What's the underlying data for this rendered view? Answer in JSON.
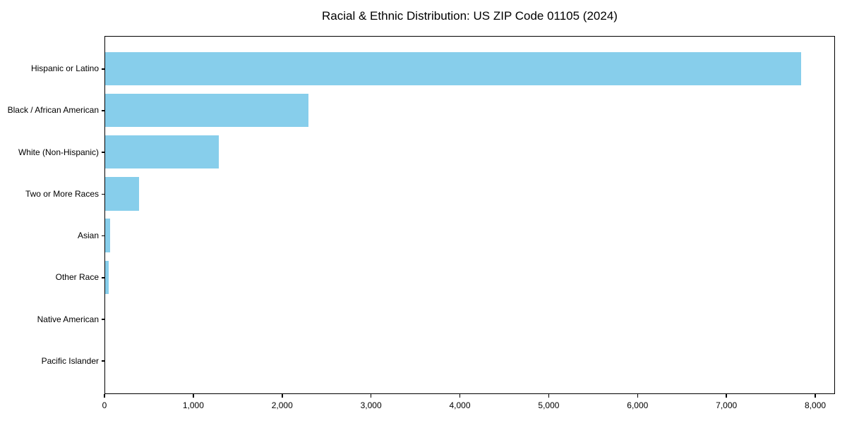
{
  "chart_data": {
    "type": "bar",
    "orientation": "horizontal",
    "title": "Racial & Ethnic Distribution: US ZIP Code 01105 (2024)",
    "categories": [
      "Hispanic or Latino",
      "Black / African American",
      "White (Non-Hispanic)",
      "Two or More Races",
      "Asian",
      "Other Race",
      "Native American",
      "Pacific Islander"
    ],
    "values": [
      7830,
      2290,
      1280,
      380,
      55,
      40,
      0,
      0
    ],
    "xlabel": "",
    "ylabel": "",
    "xlim": [
      0,
      8222
    ],
    "xticks": [
      0,
      1000,
      2000,
      3000,
      4000,
      5000,
      6000,
      7000,
      8000
    ],
    "xtick_labels": [
      "0",
      "1,000",
      "2,000",
      "3,000",
      "4,000",
      "5,000",
      "6,000",
      "7,000",
      "8,000"
    ],
    "bar_color": "#87CEEB",
    "text_color": "#000000",
    "background_color": "#ffffff",
    "grid": false,
    "legend": null
  }
}
